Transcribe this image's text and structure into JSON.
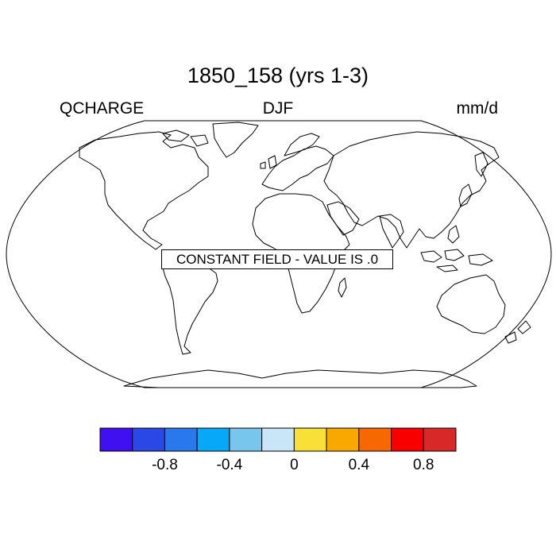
{
  "title": "1850_158 (yrs 1-3)",
  "variable": "QCHARGE",
  "season": "DJF",
  "units": "mm/d",
  "message": "CONSTANT FIELD - VALUE IS .0",
  "colorbar": {
    "colors": [
      "#4010f0",
      "#2a48e6",
      "#2a78ee",
      "#08a8f8",
      "#78c6ee",
      "#c8e6f8",
      "#f8e038",
      "#f8a800",
      "#f86800",
      "#f80000",
      "#d82828"
    ],
    "boundaries": [
      -1.0,
      -0.8,
      -0.6,
      -0.4,
      -0.2,
      0,
      0.2,
      0.4,
      0.6,
      0.8
    ],
    "labels": [
      {
        "text": "-0.8",
        "value": -0.8
      },
      {
        "text": "-0.4",
        "value": -0.4
      },
      {
        "text": "0",
        "value": 0
      },
      {
        "text": "0.4",
        "value": 0.4
      },
      {
        "text": "0.8",
        "value": 0.8
      }
    ]
  },
  "map": {
    "projection": "Robinson",
    "field_value": 0,
    "coastline_color": "#000000"
  }
}
